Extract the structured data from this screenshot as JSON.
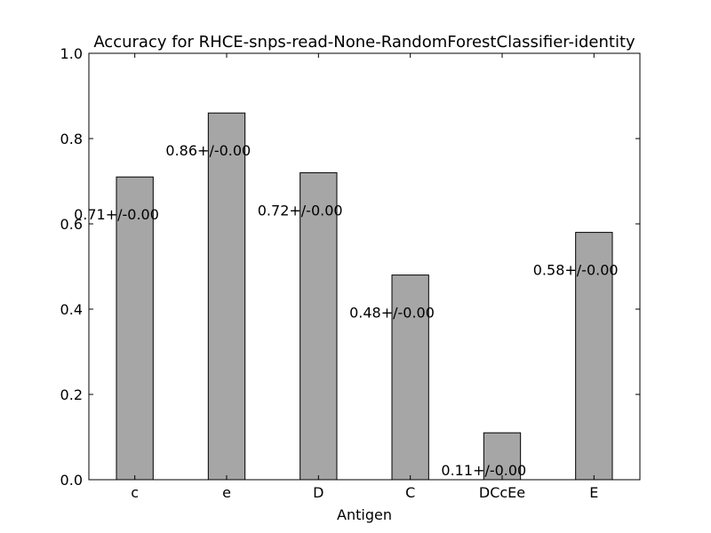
{
  "chart_data": {
    "type": "bar",
    "title": "Accuracy for RHCE-snps-read-None-RandomForestClassifier-identity",
    "xlabel": "Antigen",
    "ylabel": "",
    "categories": [
      "c",
      "e",
      "D",
      "C",
      "DCcEe",
      "E"
    ],
    "values": [
      0.71,
      0.86,
      0.72,
      0.48,
      0.11,
      0.58
    ],
    "data_labels": [
      "0.71+/-0.00",
      "0.86+/-0.00",
      "0.72+/-0.00",
      "0.48+/-0.00",
      "0.11+/-0.00",
      "0.58+/-0.00"
    ],
    "ylim": [
      0.0,
      1.0
    ],
    "yticks": [
      0.0,
      0.2,
      0.4,
      0.6,
      0.8,
      1.0
    ],
    "ytick_labels": [
      "0.0",
      "0.2",
      "0.4",
      "0.6",
      "0.8",
      "1.0"
    ],
    "grid": false,
    "legend": "none",
    "bar_color": "#a6a6a6",
    "bar_edge_color": "#000000"
  }
}
